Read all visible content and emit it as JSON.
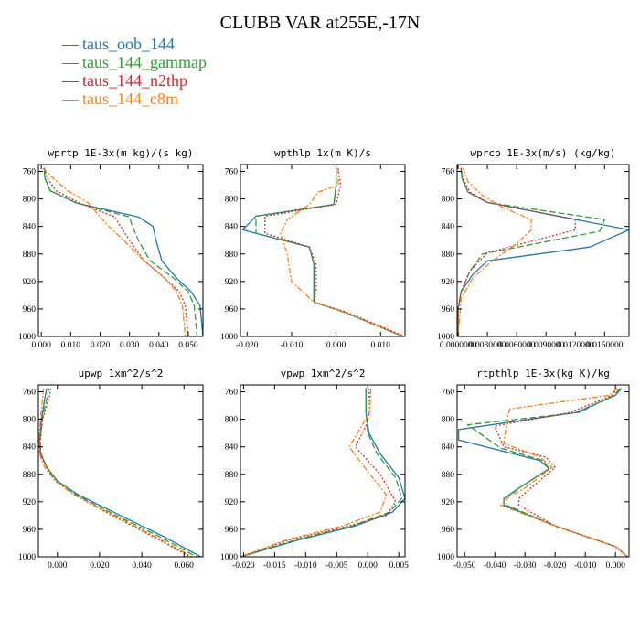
{
  "title": "CLUBB VAR at255E,-17N",
  "legend": [
    {
      "label": "taus_oob_144",
      "color": "#1f77b4",
      "dash": ""
    },
    {
      "label": "taus_144_gammap",
      "color": "#2ca02c",
      "dash": "7,3"
    },
    {
      "label": "taus_144_n2thp",
      "color": "#d62728",
      "dash": "2,2"
    },
    {
      "label": "taus_144_c8m",
      "color": "#ff7f0e",
      "dash": "6,2,2,2"
    }
  ],
  "chart_data": [
    {
      "type": "line",
      "title": "wprtp  1E-3x(m kg)/(s kg)",
      "xlim": [
        -0.001,
        0.055
      ],
      "ylim": [
        1000,
        750
      ],
      "xticks": [
        0.0,
        0.01,
        0.02,
        0.03,
        0.04,
        0.05
      ],
      "xticklabels": [
        "0.000",
        "0.010",
        "0.020",
        "0.030",
        "0.040",
        "0.050"
      ],
      "yticks": [
        760,
        800,
        840,
        880,
        920,
        960,
        1000
      ],
      "series": [
        {
          "name": "taus_oob_144",
          "x": [
            0.001,
            0.0012,
            0.003,
            0.012,
            0.033,
            0.038,
            0.039,
            0.041,
            0.046,
            0.051,
            0.054,
            0.055
          ],
          "y": [
            755,
            770,
            788,
            806,
            826,
            840,
            860,
            890,
            915,
            935,
            955,
            1000
          ]
        },
        {
          "name": "taus_144_gammap",
          "x": [
            0.001,
            0.0012,
            0.003,
            0.012,
            0.03,
            0.031,
            0.033,
            0.037,
            0.045,
            0.05,
            0.052,
            0.053
          ],
          "y": [
            755,
            770,
            788,
            806,
            826,
            840,
            860,
            890,
            915,
            935,
            955,
            1000
          ]
        },
        {
          "name": "taus_144_n2thp",
          "x": [
            0.001,
            0.002,
            0.005,
            0.013,
            0.025,
            0.027,
            0.03,
            0.035,
            0.042,
            0.047,
            0.049,
            0.05
          ],
          "y": [
            755,
            770,
            788,
            806,
            826,
            840,
            860,
            890,
            915,
            935,
            955,
            1000
          ]
        },
        {
          "name": "taus_144_c8m",
          "x": [
            0.0005,
            0.004,
            0.009,
            0.016,
            0.02,
            0.023,
            0.028,
            0.035,
            0.042,
            0.046,
            0.048,
            0.049
          ],
          "y": [
            755,
            770,
            788,
            806,
            826,
            840,
            860,
            890,
            915,
            935,
            955,
            1000
          ]
        }
      ]
    },
    {
      "type": "line",
      "title": "wpthlp  1x(m K)/s",
      "xlim": [
        -0.0215,
        0.0155
      ],
      "ylim": [
        1000,
        750
      ],
      "xticks": [
        -0.02,
        -0.01,
        0.0,
        0.01
      ],
      "xticklabels": [
        "-0.020",
        "-0.010",
        "0.000",
        "0.010"
      ],
      "yticks": [
        760,
        800,
        840,
        880,
        920,
        960,
        1000
      ],
      "series": [
        {
          "name": "taus_oob_144",
          "x": [
            0.0,
            0.0,
            -0.0005,
            -0.018,
            -0.021,
            -0.006,
            -0.005,
            -0.005,
            -0.005,
            0.002,
            0.015
          ],
          "y": [
            755,
            780,
            808,
            825,
            845,
            870,
            895,
            935,
            950,
            965,
            1000
          ]
        },
        {
          "name": "taus_144_gammap",
          "x": [
            0.0,
            0.0,
            -0.0005,
            -0.018,
            -0.018,
            -0.006,
            -0.005,
            -0.005,
            -0.005,
            0.002,
            0.015
          ],
          "y": [
            755,
            780,
            808,
            825,
            850,
            870,
            895,
            935,
            950,
            965,
            1000
          ]
        },
        {
          "name": "taus_144_n2thp",
          "x": [
            0.0005,
            0.001,
            0.0,
            -0.016,
            -0.016,
            -0.006,
            -0.0045,
            -0.0045,
            -0.005,
            0.0025,
            0.0155
          ],
          "y": [
            755,
            780,
            808,
            825,
            850,
            870,
            895,
            935,
            950,
            965,
            1000
          ]
        },
        {
          "name": "taus_144_c8m",
          "x": [
            0.0005,
            0.0005,
            -0.004,
            -0.006,
            -0.011,
            -0.0125,
            -0.011,
            -0.01,
            -0.005,
            0.002,
            0.015
          ],
          "y": [
            755,
            780,
            790,
            808,
            830,
            850,
            880,
            920,
            950,
            965,
            1000
          ]
        }
      ]
    },
    {
      "type": "line",
      "title": "wprcp  1E-3x(m/s) (kg/kg)",
      "xlim": [
        -0.0001,
        0.0175
      ],
      "ylim": [
        1000,
        750
      ],
      "xticks": [
        0.0,
        0.003,
        0.006,
        0.009,
        0.012,
        0.015
      ],
      "xticklabels": [
        "0.0000000",
        "0.0030000",
        "0.0060000",
        "0.0090000",
        "0.0120000",
        "0.0150000"
      ],
      "yticks": [
        760,
        800,
        840,
        880,
        920,
        960,
        1000
      ],
      "series": [
        {
          "name": "taus_oob_144",
          "x": [
            0.0003,
            0.0004,
            0.001,
            0.003,
            0.0175,
            0.0135,
            0.003,
            0.0015,
            0.0003,
            0.0,
            0.0
          ],
          "y": [
            755,
            770,
            790,
            805,
            845,
            870,
            890,
            910,
            935,
            960,
            1000
          ]
        },
        {
          "name": "taus_144_gammap",
          "x": [
            0.0003,
            0.0004,
            0.001,
            0.003,
            0.015,
            0.0145,
            0.0025,
            0.0012,
            0.0003,
            0.0,
            0.0
          ],
          "y": [
            755,
            770,
            790,
            805,
            830,
            847,
            880,
            905,
            935,
            960,
            1000
          ]
        },
        {
          "name": "taus_144_n2thp",
          "x": [
            0.0003,
            0.0005,
            0.0012,
            0.003,
            0.012,
            0.012,
            0.003,
            0.0012,
            0.0003,
            0.0,
            0.0
          ],
          "y": [
            755,
            770,
            790,
            805,
            830,
            845,
            878,
            905,
            935,
            960,
            1000
          ]
        },
        {
          "name": "taus_144_c8m",
          "x": [
            0.0005,
            0.001,
            0.0025,
            0.0045,
            0.0075,
            0.0075,
            0.006,
            0.0035,
            0.0015,
            0.0003,
            0.0
          ],
          "y": [
            755,
            775,
            795,
            812,
            830,
            845,
            865,
            890,
            915,
            945,
            1000
          ]
        }
      ]
    },
    {
      "type": "line",
      "title": "upwp  1xm^2/s^2",
      "xlim": [
        -0.009,
        0.069
      ],
      "ylim": [
        1000,
        750
      ],
      "xticks": [
        0.0,
        0.02,
        0.04,
        0.06
      ],
      "xticklabels": [
        "0.000",
        "0.020",
        "0.040",
        "0.060"
      ],
      "yticks": [
        760,
        800,
        840,
        880,
        920,
        960,
        1000
      ],
      "series": [
        {
          "name": "taus_oob_144",
          "x": [
            -0.005,
            -0.006,
            -0.0075,
            -0.0085,
            -0.008,
            -0.005,
            0.0,
            0.01,
            0.03,
            0.05,
            0.068
          ],
          "y": [
            755,
            770,
            800,
            830,
            850,
            870,
            890,
            910,
            940,
            970,
            1000
          ]
        },
        {
          "name": "taus_144_gammap",
          "x": [
            -0.004,
            -0.005,
            -0.0072,
            -0.0082,
            -0.0078,
            -0.005,
            0.0,
            0.009,
            0.028,
            0.048,
            0.066
          ],
          "y": [
            755,
            770,
            800,
            830,
            850,
            870,
            890,
            910,
            940,
            970,
            1000
          ]
        },
        {
          "name": "taus_144_n2thp",
          "x": [
            -0.003,
            -0.004,
            -0.007,
            -0.008,
            -0.008,
            -0.005,
            -0.001,
            0.008,
            0.026,
            0.045,
            0.063
          ],
          "y": [
            755,
            770,
            800,
            830,
            850,
            870,
            890,
            910,
            940,
            970,
            1000
          ]
        },
        {
          "name": "taus_144_c8m",
          "x": [
            -0.0065,
            -0.007,
            -0.008,
            -0.0088,
            -0.0085,
            -0.006,
            -0.001,
            0.008,
            0.027,
            0.046,
            0.064
          ],
          "y": [
            755,
            770,
            800,
            830,
            850,
            870,
            890,
            910,
            940,
            970,
            1000
          ]
        }
      ]
    },
    {
      "type": "line",
      "title": "vpwp  1xm^2/s^2",
      "xlim": [
        -0.0205,
        0.006
      ],
      "ylim": [
        1000,
        750
      ],
      "xticks": [
        -0.02,
        -0.015,
        -0.01,
        -0.005,
        0.0,
        0.005
      ],
      "xticklabels": [
        "-0.020",
        "-0.015",
        "-0.010",
        "-0.005",
        "0.000",
        "0.005"
      ],
      "yticks": [
        760,
        800,
        840,
        880,
        920,
        960,
        1000
      ],
      "series": [
        {
          "name": "taus_oob_144",
          "x": [
            -0.0003,
            -0.0003,
            0.0002,
            0.002,
            0.005,
            0.006,
            0.004,
            -0.002,
            -0.011,
            -0.0205
          ],
          "y": [
            755,
            790,
            820,
            850,
            885,
            915,
            935,
            955,
            975,
            1000
          ]
        },
        {
          "name": "taus_144_gammap",
          "x": [
            -0.0003,
            -0.0003,
            0.0,
            0.0015,
            0.0045,
            0.0055,
            0.0035,
            -0.0025,
            -0.0115,
            -0.0205
          ],
          "y": [
            755,
            790,
            820,
            850,
            885,
            915,
            935,
            955,
            975,
            1000
          ]
        },
        {
          "name": "taus_144_n2thp",
          "x": [
            0.0002,
            0.0003,
            -0.0003,
            -0.002,
            0.002,
            0.0045,
            0.003,
            -0.003,
            -0.0125,
            -0.0205
          ],
          "y": [
            755,
            790,
            810,
            840,
            880,
            920,
            940,
            955,
            975,
            1000
          ]
        },
        {
          "name": "taus_144_c8m",
          "x": [
            0.0005,
            0.0003,
            -0.001,
            -0.003,
            -0.0005,
            0.003,
            0.002,
            -0.004,
            -0.013,
            -0.0205
          ],
          "y": [
            755,
            790,
            810,
            840,
            870,
            910,
            935,
            955,
            975,
            1000
          ]
        }
      ]
    },
    {
      "type": "line",
      "title": "rtpthlp  1E-3x(kg K)/kg",
      "xlim": [
        -0.0525,
        0.0045
      ],
      "ylim": [
        1000,
        750
      ],
      "xticks": [
        -0.05,
        -0.04,
        -0.03,
        -0.02,
        -0.01,
        0.0
      ],
      "xticklabels": [
        "-0.050",
        "-0.040",
        "-0.030",
        "-0.020",
        "-0.010",
        "0.000"
      ],
      "yticks": [
        760,
        800,
        840,
        880,
        920,
        960,
        1000
      ],
      "series": [
        {
          "name": "taus_oob_144",
          "x": [
            0.002,
            0.0,
            -0.013,
            -0.052,
            -0.052,
            -0.025,
            -0.022,
            -0.032,
            -0.037,
            -0.037,
            -0.02,
            0.0,
            0.004
          ],
          "y": [
            755,
            765,
            790,
            815,
            830,
            860,
            872,
            900,
            915,
            925,
            955,
            985,
            1000
          ]
        },
        {
          "name": "taus_144_gammap",
          "x": [
            0.0015,
            -0.0005,
            -0.012,
            -0.049,
            -0.038,
            -0.024,
            -0.022,
            -0.032,
            -0.036,
            -0.036,
            -0.02,
            0.0,
            0.004
          ],
          "y": [
            755,
            765,
            790,
            808,
            842,
            860,
            872,
            900,
            915,
            925,
            955,
            985,
            1000
          ]
        },
        {
          "name": "taus_144_n2thp",
          "x": [
            0.0005,
            -0.001,
            -0.015,
            -0.04,
            -0.037,
            -0.023,
            -0.02,
            -0.028,
            -0.032,
            -0.032,
            -0.02,
            0.0,
            0.004
          ],
          "y": [
            755,
            765,
            790,
            810,
            840,
            855,
            870,
            900,
            915,
            925,
            955,
            985,
            1000
          ]
        },
        {
          "name": "taus_144_c8m",
          "x": [
            0.0005,
            -0.002,
            -0.035,
            -0.036,
            -0.037,
            -0.025,
            -0.021,
            -0.03,
            -0.036,
            -0.038,
            -0.02,
            0.0,
            0.004
          ],
          "y": [
            755,
            765,
            785,
            800,
            835,
            855,
            870,
            900,
            915,
            925,
            955,
            985,
            1000
          ]
        }
      ]
    }
  ]
}
